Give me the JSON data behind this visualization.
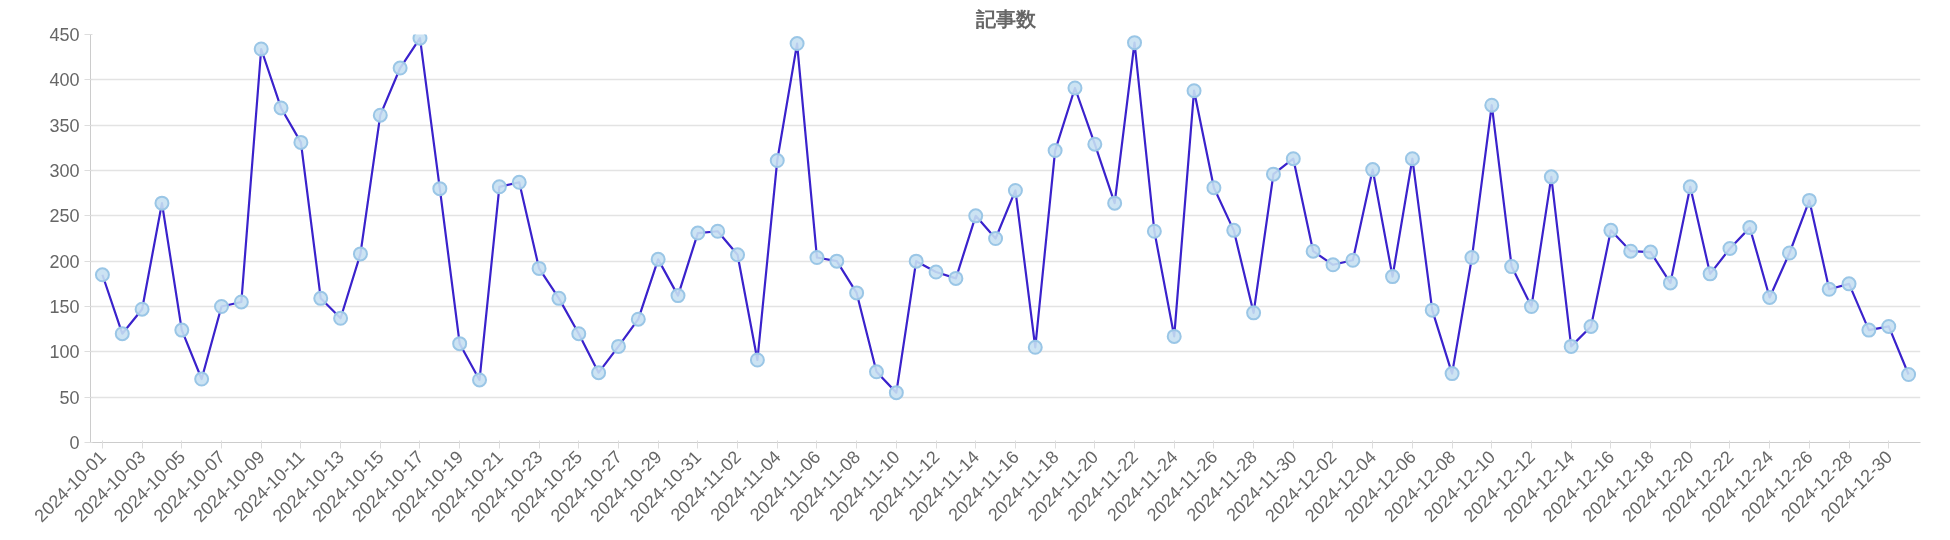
{
  "chart_data": {
    "type": "line",
    "title": "記事数",
    "categories": [
      "2024-10-01",
      null,
      "2024-10-03",
      null,
      "2024-10-05",
      null,
      "2024-10-07",
      null,
      "2024-10-09",
      null,
      "2024-10-11",
      null,
      "2024-10-13",
      null,
      "2024-10-15",
      null,
      "2024-10-17",
      null,
      "2024-10-19",
      null,
      "2024-10-21",
      null,
      "2024-10-23",
      null,
      "2024-10-25",
      null,
      "2024-10-27",
      null,
      "2024-10-29",
      null,
      "2024-10-31",
      null,
      "2024-11-02",
      null,
      "2024-11-04",
      null,
      "2024-11-06",
      null,
      "2024-11-08",
      null,
      "2024-11-10",
      null,
      "2024-11-12",
      null,
      "2024-11-14",
      null,
      "2024-11-16",
      null,
      "2024-11-18",
      null,
      "2024-11-20",
      null,
      "2024-11-22",
      null,
      "2024-11-24",
      null,
      "2024-11-26",
      null,
      "2024-11-28",
      null,
      "2024-11-30",
      null,
      "2024-12-02",
      null,
      "2024-12-04",
      null,
      "2024-12-06",
      null,
      "2024-12-08",
      null,
      "2024-12-10",
      null,
      "2024-12-12",
      null,
      "2024-12-14",
      null,
      "2024-12-16",
      null,
      "2024-12-18",
      null,
      "2024-12-20",
      null,
      "2024-12-22",
      null,
      "2024-12-24",
      null,
      "2024-12-26",
      null,
      "2024-12-28",
      null,
      "2024-12-30",
      null
    ],
    "series": [
      {
        "color": "#3a22cc",
        "values": [
          185,
          120,
          147,
          264,
          124,
          70,
          150,
          155,
          434,
          369,
          331,
          159,
          137,
          208,
          361,
          413,
          446,
          280,
          109,
          69,
          282,
          287,
          192,
          159,
          120,
          77,
          106,
          136,
          202,
          162,
          231,
          233,
          207,
          91,
          311,
          440,
          204,
          200,
          165,
          78,
          55,
          200,
          188,
          181,
          250,
          225,
          278,
          105,
          322,
          391,
          329,
          264,
          441,
          233,
          117,
          388,
          281,
          234,
          143,
          296,
          313,
          211,
          196,
          201,
          301,
          183,
          313,
          146,
          76,
          204,
          372,
          194,
          150,
          293,
          106,
          128,
          234,
          211,
          210,
          176,
          282,
          186,
          214,
          237,
          160,
          209,
          267,
          169,
          175,
          124,
          128,
          75
        ]
      }
    ],
    "marker": "circle",
    "line_style": "solid",
    "ylim": [
      0,
      450
    ],
    "yticks": [
      0,
      50,
      100,
      150,
      200,
      250,
      300,
      350,
      400,
      450
    ],
    "grid": "y"
  }
}
